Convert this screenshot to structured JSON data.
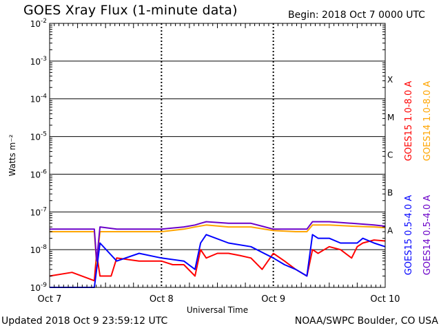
{
  "header": {
    "title": "GOES Xray Flux (1-minute data)",
    "begin": "Begin:  2018 Oct 7 0000 UTC"
  },
  "footer": {
    "updated": "Updated 2018 Oct  9 23:59:12 UTC",
    "credit": "NOAA/SWPC Boulder, CO USA"
  },
  "colors": {
    "goes15_long": "#ff0000",
    "goes14_long": "#ffa500",
    "goes15_short": "#0000ff",
    "goes14_short": "#6a00c8"
  },
  "chart_data": {
    "type": "line",
    "title": "GOES Xray Flux (1-minute data)",
    "xlabel": "Universal Time",
    "ylabel": "Watts m⁻²",
    "yscale": "log",
    "ylim": [
      1e-09,
      0.01
    ],
    "xlim": [
      0,
      3
    ],
    "x_ticks": [
      "Oct 7",
      "Oct 8",
      "Oct 9",
      "Oct 10"
    ],
    "y_ticks": [
      {
        "base": "10",
        "exp": "-9"
      },
      {
        "base": "10",
        "exp": "-8"
      },
      {
        "base": "10",
        "exp": "-7"
      },
      {
        "base": "10",
        "exp": "-6"
      },
      {
        "base": "10",
        "exp": "-5"
      },
      {
        "base": "10",
        "exp": "-4"
      },
      {
        "base": "10",
        "exp": "-3"
      },
      {
        "base": "10",
        "exp": "-2"
      }
    ],
    "flare_classes": [
      {
        "label": "A",
        "value": 1e-08
      },
      {
        "label": "B",
        "value": 1e-07
      },
      {
        "label": "C",
        "value": 1e-06
      },
      {
        "label": "M",
        "value": 1e-05
      },
      {
        "label": "X",
        "value": 0.0001
      }
    ],
    "grid": true,
    "legend_placement": "right",
    "series": [
      {
        "name": "GOES15 1.0-8.0 A",
        "color": "#ff0000",
        "x": [
          0.0,
          0.2,
          0.4,
          0.42,
          0.45,
          0.55,
          0.6,
          0.8,
          1.0,
          1.1,
          1.2,
          1.3,
          1.35,
          1.4,
          1.5,
          1.6,
          1.7,
          1.8,
          1.9,
          2.0,
          2.1,
          2.2,
          2.3,
          2.35,
          2.4,
          2.5,
          2.6,
          2.7,
          2.75,
          2.8,
          2.9,
          3.0
        ],
        "values": [
          2e-09,
          2.5e-09,
          1.5e-09,
          8e-09,
          2e-09,
          2e-09,
          6e-09,
          5e-09,
          5e-09,
          4e-09,
          4e-09,
          2e-09,
          1e-08,
          6e-09,
          8e-09,
          8e-09,
          7e-09,
          6e-09,
          3e-09,
          8e-09,
          5e-09,
          3e-09,
          2e-09,
          1e-08,
          8e-09,
          1.2e-08,
          1e-08,
          6e-09,
          1.2e-08,
          1.5e-08,
          1.8e-08,
          1.7e-08
        ]
      },
      {
        "name": "GOES14 1.0-8.0 A",
        "color": "#ffa500",
        "x": [
          0.0,
          0.2,
          0.4,
          0.42,
          0.45,
          0.6,
          0.8,
          1.0,
          1.2,
          1.3,
          1.4,
          1.6,
          1.8,
          2.0,
          2.2,
          2.3,
          2.35,
          2.5,
          2.7,
          2.9,
          3.0
        ],
        "values": [
          3e-08,
          3e-08,
          3e-08,
          4e-09,
          3e-08,
          3e-08,
          3e-08,
          3e-08,
          3.5e-08,
          4e-08,
          4.5e-08,
          4e-08,
          4e-08,
          3.2e-08,
          3e-08,
          3e-08,
          4.5e-08,
          4.5e-08,
          4.2e-08,
          4e-08,
          3.8e-08
        ]
      },
      {
        "name": "GOES15 0.5-4.0 A",
        "color": "#0000ff",
        "x": [
          0.0,
          0.2,
          0.4,
          0.45,
          0.6,
          0.8,
          1.0,
          1.2,
          1.3,
          1.35,
          1.4,
          1.6,
          1.8,
          2.0,
          2.1,
          2.2,
          2.3,
          2.35,
          2.4,
          2.5,
          2.6,
          2.75,
          2.8,
          2.9,
          3.0
        ],
        "values": [
          1e-09,
          1e-09,
          1e-09,
          1.5e-08,
          5e-09,
          8e-09,
          6e-09,
          5e-09,
          3e-09,
          1.5e-08,
          2.5e-08,
          1.5e-08,
          1.2e-08,
          6e-09,
          4e-09,
          3e-09,
          2e-09,
          2.5e-08,
          2e-08,
          2e-08,
          1.5e-08,
          1.5e-08,
          2e-08,
          1.5e-08,
          1.2e-08
        ]
      },
      {
        "name": "GOES14 0.5-4.0 A",
        "color": "#6a00c8",
        "x": [
          0.0,
          0.2,
          0.4,
          0.42,
          0.45,
          0.6,
          0.8,
          1.0,
          1.2,
          1.3,
          1.35,
          1.4,
          1.6,
          1.8,
          2.0,
          2.2,
          2.3,
          2.35,
          2.5,
          2.7,
          2.9,
          3.0
        ],
        "values": [
          3.5e-08,
          3.5e-08,
          3.5e-08,
          5e-09,
          4e-08,
          3.5e-08,
          3.5e-08,
          3.5e-08,
          4e-08,
          4.5e-08,
          5e-08,
          5.5e-08,
          5e-08,
          5e-08,
          3.5e-08,
          3.5e-08,
          3.5e-08,
          5.5e-08,
          5.5e-08,
          5e-08,
          4.5e-08,
          4.2e-08
        ]
      }
    ]
  }
}
